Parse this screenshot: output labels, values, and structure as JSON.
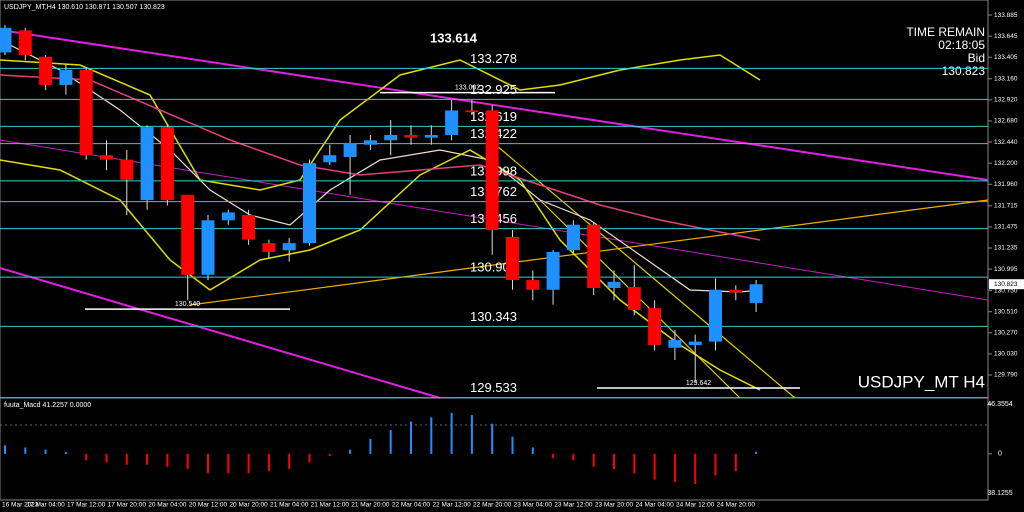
{
  "chart_data": [
    {
      "type": "candlestick",
      "header": "USDJPY_MT,H4 130.610 130.871 130.507 130.823",
      "watermark": "USDJPY_MT H4",
      "info": {
        "time_label": "TIME REMAIN",
        "time": "02:18:05",
        "bid_label": "Bid",
        "bid": 130.823
      },
      "categories": [
        "16 Mar 2023",
        null,
        "17 Mar 04:00",
        null,
        "17 Mar 12:00",
        null,
        "17 Mar 20:00",
        null,
        "20 Mar 04:00",
        null,
        "20 Mar 12:00",
        null,
        "20 Mar 20:00",
        null,
        "21 Mar 04:00",
        null,
        "21 Mar 12:00",
        null,
        "21 Mar 20:00",
        null,
        "22 Mar 04:00",
        null,
        "22 Mar 12:00",
        null,
        "22 Mar 20:00",
        null,
        "23 Mar 04:00",
        null,
        "23 Mar 12:00",
        null,
        "23 Mar 20:00",
        null,
        "24 Mar 04:00",
        null,
        "24 Mar 12:00",
        null,
        "24 Mar 20:00",
        null
      ],
      "open": [
        133.46,
        133.71,
        133.41,
        133.09,
        133.26,
        132.29,
        132.24,
        131.78,
        132.61,
        131.84,
        130.93,
        131.55,
        131.61,
        131.29,
        131.21,
        131.29,
        132.21,
        132.27,
        132.41,
        132.46,
        132.52,
        132.49,
        132.52,
        132.8,
        132.8,
        131.36,
        130.87,
        130.76,
        131.21,
        131.5,
        130.78,
        130.79,
        130.55,
        130.1,
        130.13,
        130.17,
        130.76,
        130.61
      ],
      "high": [
        133.77,
        133.74,
        133.43,
        133.32,
        133.28,
        132.46,
        132.35,
        132.63,
        132.63,
        131.84,
        131.61,
        131.67,
        131.67,
        131.33,
        131.35,
        132.24,
        132.41,
        132.52,
        132.52,
        132.69,
        132.63,
        132.63,
        132.92,
        132.92,
        132.86,
        131.44,
        130.98,
        131.21,
        131.55,
        131.53,
        130.98,
        131.04,
        130.64,
        130.3,
        130.25,
        130.89,
        130.81,
        130.871
      ],
      "low": [
        133.43,
        133.37,
        133.03,
        132.98,
        132.24,
        132.12,
        131.61,
        131.67,
        131.72,
        130.64,
        130.87,
        131.5,
        131.27,
        131.12,
        131.08,
        131.26,
        132.18,
        131.84,
        132.35,
        132.29,
        132.41,
        132.41,
        132.46,
        132.75,
        131.16,
        130.76,
        130.64,
        130.59,
        131.16,
        130.7,
        130.64,
        130.47,
        130.07,
        129.96,
        129.71,
        130.07,
        130.64,
        130.507
      ],
      "close": [
        133.74,
        133.43,
        133.09,
        133.26,
        132.29,
        132.24,
        132.01,
        132.61,
        131.78,
        130.93,
        131.55,
        131.64,
        131.33,
        131.19,
        131.29,
        132.2,
        132.29,
        132.43,
        132.46,
        132.52,
        132.49,
        132.52,
        132.8,
        132.78,
        131.44,
        130.87,
        130.76,
        131.19,
        131.5,
        130.78,
        130.85,
        130.53,
        130.13,
        130.19,
        130.17,
        130.76,
        130.73,
        130.823
      ],
      "up_color": "#1e90ff",
      "down_color": "#ff0000",
      "ylim": [
        129.54,
        134.056
      ],
      "yticks": [
        133.885,
        133.645,
        133.405,
        {
          "value": 133.16,
          "label": "133.160"
        },
        {
          "value": 132.92,
          "label": "132.920"
        },
        {
          "value": 132.68,
          "label": "132.680"
        },
        {
          "value": 132.44,
          "label": "132.440"
        },
        {
          "value": 132.2,
          "label": "132.200"
        },
        {
          "value": 131.96,
          "label": "131.960"
        },
        131.715,
        131.475,
        131.235,
        130.995,
        {
          "value": 130.75,
          "label": "130.750"
        },
        {
          "value": 130.51,
          "label": "130.510"
        },
        {
          "value": 130.27,
          "label": "130.270"
        },
        {
          "value": 130.03,
          "label": "130.030"
        },
        {
          "value": 129.79,
          "label": "129.790"
        }
      ],
      "levels": [
        133.278,
        132.925,
        132.619,
        132.422,
        131.998,
        131.762,
        131.456,
        130.903,
        130.343,
        129.533
      ],
      "level_color": "#40c8c8",
      "bold_level": 133.614,
      "annotations": [
        133.002,
        {
          "value": 130.54,
          "label": "130.540"
        },
        129.642
      ]
    },
    {
      "type": "bar",
      "title": "fuuta_Macd 41.2257 0.0000",
      "values": [
        8,
        6,
        4,
        2,
        -6,
        -8,
        -10,
        -10,
        -12,
        -14,
        -18,
        -18,
        -18,
        -16,
        -14,
        -8,
        -2,
        4,
        14,
        22,
        30,
        34,
        38,
        36,
        28,
        16,
        6,
        -4,
        -6,
        -12,
        -14,
        -18,
        -24,
        -26,
        -28,
        -20,
        -16,
        2
      ],
      "ylim": [
        -40,
        50
      ],
      "yticks": [
        46.3554,
        0
      ],
      "min_label": "38.1255"
    }
  ]
}
